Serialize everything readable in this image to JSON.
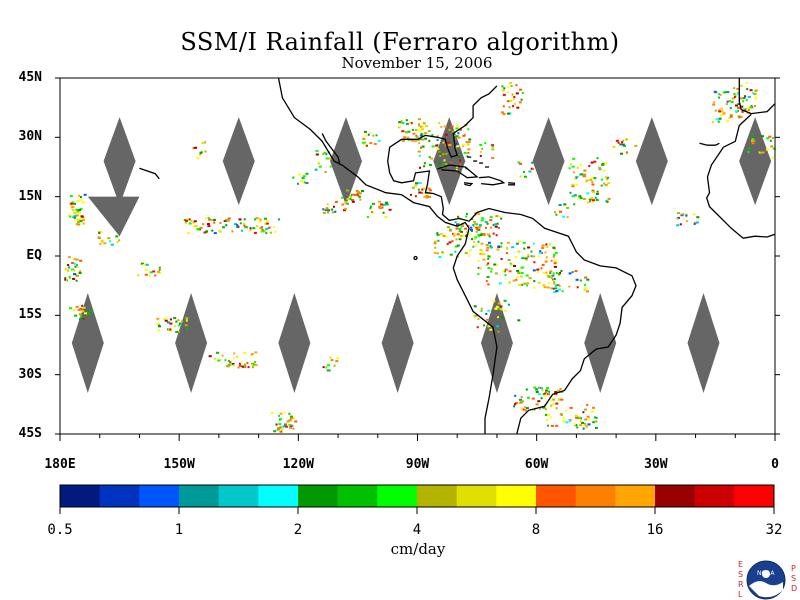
{
  "title": "SSM/I Rainfall (Ferraro algorithm)",
  "subtitle": "November 15, 2006",
  "map": {
    "lon_range": [
      -180,
      0
    ],
    "lat_range": [
      -45,
      45
    ],
    "lat_ticks": [
      {
        "value": 45,
        "label": "45N"
      },
      {
        "value": 30,
        "label": "30N"
      },
      {
        "value": 15,
        "label": "15N"
      },
      {
        "value": 0,
        "label": "EQ"
      },
      {
        "value": -15,
        "label": "15S"
      },
      {
        "value": -30,
        "label": "30S"
      },
      {
        "value": -45,
        "label": "45S"
      }
    ],
    "lon_ticks": [
      {
        "value": -180,
        "label": "180E"
      },
      {
        "value": -150,
        "label": "150W"
      },
      {
        "value": -120,
        "label": "120W"
      },
      {
        "value": -90,
        "label": "90W"
      },
      {
        "value": -60,
        "label": "60W"
      },
      {
        "value": -30,
        "label": "30W"
      },
      {
        "value": 0,
        "label": "0"
      }
    ],
    "no_data_color": "#666666",
    "coastline_color": "#000000"
  },
  "colorbar": {
    "unit": "cm/day",
    "labels": [
      "0.5",
      "1",
      "2",
      "4",
      "8",
      "16",
      "32"
    ],
    "colors": [
      "#001a80",
      "#0033c0",
      "#0055ff",
      "#009999",
      "#00c8c8",
      "#00ffff",
      "#009900",
      "#00c000",
      "#00ff00",
      "#b3b300",
      "#e0e000",
      "#ffff00",
      "#ff5500",
      "#ff8000",
      "#ffa500",
      "#990000",
      "#cc0000",
      "#ff0000"
    ]
  },
  "logo": {
    "left_letters": [
      "E",
      "S",
      "R",
      "L"
    ],
    "right_letters": [
      "P",
      "S",
      "D"
    ],
    "center_text": "NOAA"
  }
}
